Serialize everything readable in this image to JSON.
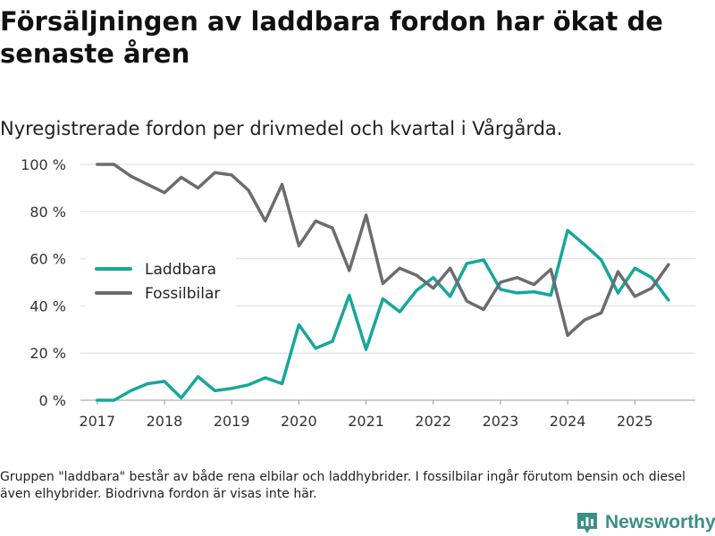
{
  "header": {
    "title": "Försäljningen av laddbara fordon har ökat de senaste åren",
    "subtitle": "Nyregistrerade fordon per drivmedel och kvartal i Vårgårda."
  },
  "footer": {
    "note": "Gruppen \"laddbara\" består av både rena elbilar och laddhybrider. I fossilbilar ingår förutom bensin och diesel även elhybrider. Biodrivna fordon är visas inte här.",
    "brand": "Newsworthy"
  },
  "colors": {
    "laddbara": "#16a79a",
    "fossil": "#6b6b72",
    "grid": "#dcdcdc",
    "brand": "#3b8f88"
  },
  "chart_data": {
    "type": "line",
    "x": [
      2017.0,
      2017.25,
      2017.5,
      2017.75,
      2018.0,
      2018.25,
      2018.5,
      2018.75,
      2019.0,
      2019.25,
      2019.5,
      2019.75,
      2020.0,
      2020.25,
      2020.5,
      2020.75,
      2021.0,
      2021.25,
      2021.5,
      2021.75,
      2022.0,
      2022.25,
      2022.5,
      2022.75,
      2023.0,
      2023.25,
      2023.5,
      2023.75,
      2024.0,
      2024.25,
      2024.5,
      2024.75,
      2025.0,
      2025.25,
      2025.5
    ],
    "series": [
      {
        "name": "Laddbara",
        "color_key": "laddbara",
        "values": [
          0,
          0,
          4,
          7,
          8,
          1,
          10,
          4,
          5,
          6.5,
          9.5,
          7,
          32,
          22,
          25,
          44.5,
          21.5,
          43,
          37.5,
          46.5,
          52,
          44,
          58,
          59.5,
          47,
          45.5,
          46,
          44.5,
          72,
          66,
          59.5,
          45.5,
          56,
          52,
          42.5
        ]
      },
      {
        "name": "Fossilbilar",
        "color_key": "fossil",
        "values": [
          100,
          100,
          95,
          91.5,
          88,
          94.5,
          90,
          96.5,
          95.5,
          89,
          76,
          91.5,
          65.5,
          76,
          73,
          55,
          78.5,
          49.5,
          56,
          53,
          47.5,
          56,
          42,
          38.5,
          50,
          52,
          49,
          55.5,
          27.5,
          34,
          37,
          54.5,
          44,
          47.5,
          57.5
        ]
      }
    ],
    "x_ticks": [
      2017,
      2018,
      2019,
      2020,
      2021,
      2022,
      2023,
      2024,
      2025
    ],
    "x_tick_labels": [
      "2017",
      "2018",
      "2019",
      "2020",
      "2021",
      "2022",
      "2023",
      "2024",
      "2025"
    ],
    "y_ticks": [
      0,
      20,
      40,
      60,
      80,
      100
    ],
    "y_tick_labels": [
      "0 %",
      "20 %",
      "40 %",
      "60 %",
      "80 %",
      "100 %"
    ],
    "xlim": [
      2016.75,
      2025.9
    ],
    "ylim": [
      0,
      100
    ],
    "legend": {
      "entries": [
        "Laddbara",
        "Fossilbilar"
      ],
      "position": "center-left"
    },
    "grid": true
  }
}
